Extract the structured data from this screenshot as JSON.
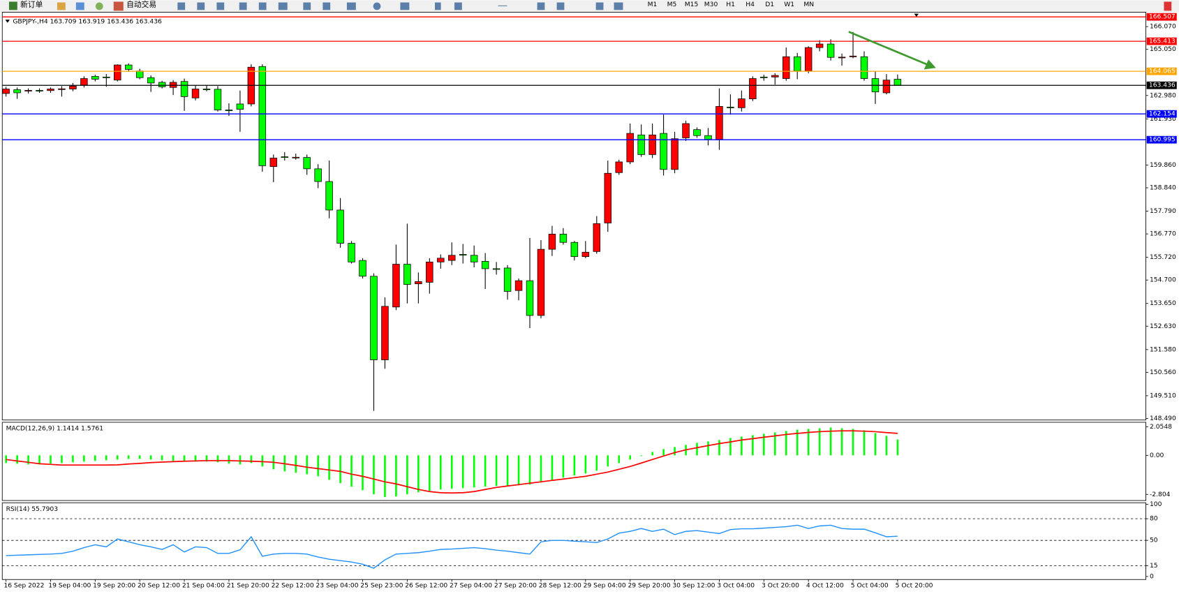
{
  "toolbar": {
    "new_order": "新订单",
    "auto_trading": "自动交易",
    "timeframes": [
      "M1",
      "M5",
      "M15",
      "M30",
      "H1",
      "H4",
      "D1",
      "W1",
      "MN"
    ]
  },
  "chart_data": [
    {
      "type": "candlestick",
      "title": "GBPJPY-,H4",
      "title_values": [
        163.709,
        163.919,
        163.436,
        163.436
      ],
      "up_color": "#ff0000",
      "down_color": "#00ff00",
      "categories": [
        "16 Sep 2022",
        null,
        null,
        null,
        "19 Sep 04:00",
        null,
        null,
        null,
        "19 Sep 20:00",
        null,
        null,
        null,
        "20 Sep 12:00",
        null,
        null,
        null,
        "21 Sep 04:00",
        null,
        null,
        null,
        "21 Sep 20:00",
        null,
        null,
        null,
        "22 Sep 12:00",
        null,
        null,
        null,
        "23 Sep 04:00",
        null,
        null,
        null,
        "25 Sep 23:00",
        null,
        null,
        null,
        "26 Sep 12:00",
        null,
        null,
        null,
        "27 Sep 04:00",
        null,
        null,
        null,
        "27 Sep 20:00",
        null,
        null,
        null,
        "28 Sep 12:00",
        null,
        null,
        null,
        "29 Sep 04:00",
        null,
        null,
        null,
        "29 Sep 20:00",
        null,
        null,
        null,
        "30 Sep 12:00",
        null,
        null,
        null,
        "3 Oct 04:00",
        null,
        null,
        null,
        "3 Oct 20:00",
        null,
        null,
        null,
        "4 Oct 12:00",
        null,
        null,
        null,
        "5 Oct 04:00",
        null,
        null,
        null,
        "5 Oct 20:00"
      ],
      "open": [
        163.07,
        163.24,
        163.2,
        163.21,
        163.2,
        163.27,
        163.27,
        163.44,
        163.84,
        163.81,
        163.67,
        164.35,
        164.08,
        163.78,
        163.57,
        163.34,
        163.61,
        162.87,
        163.27,
        163.26,
        162.33,
        162.6,
        162.6,
        164.28,
        159.79,
        160.23,
        160.2,
        160.2,
        159.69,
        159.12,
        157.84,
        156.35,
        155.58,
        154.87,
        151.12,
        153.49,
        155.41,
        154.53,
        154.6,
        155.51,
        155.58,
        155.85,
        155.81,
        155.54,
        155.21,
        155.24,
        154.23,
        154.67,
        153.11,
        156.08,
        156.76,
        156.39,
        155.75,
        155.98,
        157.26,
        159.52,
        160.0,
        161.21,
        160.33,
        161.28,
        159.66,
        161.08,
        161.45,
        161.18,
        161.01,
        162.46,
        162.43,
        162.83,
        163.81,
        163.81,
        163.74,
        164.72,
        164.08,
        165.13,
        165.29,
        164.69,
        164.72,
        164.72,
        163.74,
        163.1,
        163.709
      ],
      "high": [
        163.37,
        163.34,
        163.3,
        163.3,
        163.34,
        163.4,
        163.54,
        163.84,
        163.91,
        163.94,
        164.38,
        164.42,
        164.18,
        163.88,
        163.64,
        163.67,
        163.74,
        163.44,
        163.44,
        163.4,
        162.63,
        163.2,
        164.38,
        164.38,
        160.33,
        160.44,
        160.37,
        160.33,
        159.9,
        160.06,
        158.38,
        156.45,
        155.68,
        155.0,
        153.92,
        156.29,
        157.23,
        155.04,
        155.68,
        155.85,
        156.39,
        156.32,
        156.25,
        155.91,
        155.51,
        155.37,
        154.77,
        156.59,
        156.49,
        157.13,
        157.03,
        156.45,
        156.45,
        157.57,
        160.06,
        160.1,
        161.72,
        161.68,
        161.72,
        162.12,
        161.35,
        161.85,
        161.55,
        161.52,
        163.3,
        163.03,
        163.2,
        163.84,
        163.91,
        163.98,
        165.13,
        164.89,
        165.19,
        165.46,
        165.5,
        164.86,
        165.83,
        164.96,
        164.08,
        163.94,
        163.919
      ],
      "low": [
        162.93,
        162.83,
        163.07,
        163.1,
        163.1,
        162.93,
        163.17,
        163.34,
        163.61,
        163.37,
        163.61,
        164.05,
        163.71,
        163.14,
        163.3,
        163.0,
        162.29,
        162.76,
        163.17,
        162.26,
        162.06,
        161.35,
        162.49,
        159.56,
        159.09,
        160.06,
        160.1,
        159.42,
        158.82,
        157.47,
        156.15,
        155.44,
        154.77,
        148.83,
        150.72,
        153.35,
        153.65,
        153.65,
        154.09,
        155.21,
        155.37,
        155.44,
        155.27,
        154.3,
        154.94,
        153.82,
        153.79,
        152.54,
        152.98,
        155.78,
        156.29,
        155.58,
        155.68,
        155.88,
        156.86,
        159.42,
        159.9,
        160.23,
        160.17,
        159.39,
        159.49,
        160.94,
        161.08,
        160.74,
        160.54,
        162.12,
        162.26,
        162.73,
        163.64,
        163.47,
        163.64,
        163.71,
        163.98,
        164.96,
        164.55,
        164.32,
        164.65,
        163.64,
        162.6,
        163.03,
        163.436
      ],
      "close": [
        163.27,
        163.1,
        163.21,
        163.2,
        163.27,
        163.28,
        163.4,
        163.74,
        163.71,
        163.8,
        164.35,
        164.15,
        163.78,
        163.54,
        163.37,
        163.57,
        162.93,
        163.27,
        163.26,
        162.33,
        162.32,
        162.36,
        164.25,
        159.83,
        160.17,
        160.22,
        160.21,
        159.69,
        159.12,
        157.84,
        156.35,
        155.51,
        154.87,
        151.12,
        153.52,
        155.41,
        154.5,
        154.63,
        155.51,
        155.68,
        155.81,
        155.84,
        155.51,
        155.21,
        155.2,
        154.19,
        154.67,
        153.11,
        156.08,
        156.76,
        156.39,
        155.75,
        155.95,
        157.23,
        159.49,
        160.0,
        161.28,
        160.33,
        161.21,
        159.66,
        161.04,
        161.72,
        161.18,
        161.01,
        162.49,
        162.45,
        162.83,
        163.74,
        163.8,
        163.88,
        164.72,
        164.08,
        165.13,
        165.29,
        164.69,
        164.7,
        164.75,
        163.74,
        163.14,
        163.67,
        163.436
      ],
      "ylim": [
        148.42,
        166.58
      ],
      "yticks": [
        {
          "value": 166.07,
          "label": "166.070"
        },
        {
          "value": 165.05,
          "label": "165.050"
        },
        {
          "value": 162.98,
          "label": "162.980"
        },
        {
          "value": 161.93,
          "label": "161.930"
        },
        {
          "value": 159.86,
          "label": "159.860"
        },
        {
          "value": 158.84,
          "label": "158.840"
        },
        {
          "value": 157.79,
          "label": "157.790"
        },
        {
          "value": 156.77,
          "label": "156.770"
        },
        {
          "value": 155.72,
          "label": "155.720"
        },
        {
          "value": 154.7,
          "label": "154.700"
        },
        {
          "value": 153.65,
          "label": "153.650"
        },
        {
          "value": 152.63,
          "label": "152.630"
        },
        {
          "value": 151.58,
          "label": "151.580"
        },
        {
          "value": 150.56,
          "label": "150.560"
        },
        {
          "value": 149.51,
          "label": "149.510"
        },
        {
          "value": 148.49,
          "label": "148.490"
        }
      ],
      "levels": [
        {
          "value": 166.507,
          "color": "#ff0000"
        },
        {
          "value": 165.413,
          "color": "#ff0000"
        },
        {
          "value": 164.065,
          "color": "#ffa500"
        },
        {
          "value": 163.436,
          "color": "#000000"
        },
        {
          "value": 162.154,
          "color": "#0000ff"
        },
        {
          "value": 160.995,
          "color": "#0000ff"
        }
      ]
    },
    {
      "type": "macd",
      "title": "MACD(12,26,9)",
      "title_values": [
        1.1414,
        1.5761
      ],
      "series": [
        {
          "kind": "bar",
          "color": "#00ff00",
          "values": [
            -0.55,
            -0.6,
            -0.65,
            -0.65,
            -0.6,
            -0.55,
            -0.5,
            -0.45,
            -0.4,
            -0.35,
            -0.3,
            -0.25,
            -0.25,
            -0.3,
            -0.35,
            -0.4,
            -0.45,
            -0.45,
            -0.45,
            -0.5,
            -0.6,
            -0.65,
            -0.55,
            -0.8,
            -1.0,
            -1.15,
            -1.25,
            -1.35,
            -1.5,
            -1.75,
            -2.0,
            -2.25,
            -2.5,
            -2.8,
            -3.0,
            -2.95,
            -2.8,
            -2.65,
            -2.55,
            -2.45,
            -2.4,
            -2.35,
            -2.3,
            -2.25,
            -2.2,
            -2.2,
            -2.15,
            -2.1,
            -1.95,
            -1.75,
            -1.6,
            -1.45,
            -1.3,
            -1.1,
            -0.8,
            -0.55,
            -0.3,
            -0.05,
            0.25,
            0.45,
            0.6,
            0.75,
            0.9,
            1.0,
            1.1,
            1.25,
            1.35,
            1.45,
            1.55,
            1.65,
            1.75,
            1.85,
            1.9,
            1.95,
            2.0,
            1.95,
            1.9,
            1.8,
            1.6,
            1.4,
            1.1414
          ]
        },
        {
          "kind": "line",
          "color": "#ff0000",
          "values": [
            -0.3,
            -0.4,
            -0.5,
            -0.6,
            -0.65,
            -0.7,
            -0.7,
            -0.7,
            -0.7,
            -0.7,
            -0.68,
            -0.62,
            -0.58,
            -0.52,
            -0.48,
            -0.45,
            -0.42,
            -0.4,
            -0.38,
            -0.38,
            -0.38,
            -0.4,
            -0.42,
            -0.45,
            -0.5,
            -0.6,
            -0.72,
            -0.85,
            -0.95,
            -1.05,
            -1.15,
            -1.35,
            -1.5,
            -1.7,
            -1.9,
            -2.05,
            -2.25,
            -2.45,
            -2.6,
            -2.68,
            -2.7,
            -2.68,
            -2.6,
            -2.45,
            -2.3,
            -2.2,
            -2.1,
            -2.0,
            -1.9,
            -1.8,
            -1.7,
            -1.6,
            -1.5,
            -1.35,
            -1.2,
            -1.0,
            -0.8,
            -0.55,
            -0.3,
            -0.05,
            0.2,
            0.4,
            0.55,
            0.7,
            0.85,
            0.97,
            1.1,
            1.2,
            1.3,
            1.4,
            1.5,
            1.58,
            1.65,
            1.7,
            1.74,
            1.76,
            1.76,
            1.74,
            1.7,
            1.64,
            1.5761
          ]
        }
      ],
      "ylim": [
        -3.243,
        2.378
      ],
      "yticks": [
        2.0548,
        {
          "value": 0,
          "label": "0.00"
        },
        -2.804
      ]
    },
    {
      "type": "line",
      "title": "RSI(14)",
      "title_values": [
        55.7903
      ],
      "color": "#1e90ff",
      "values": [
        29,
        29.5,
        30,
        30.5,
        31,
        32,
        35,
        40,
        44,
        41,
        52,
        48,
        44,
        41,
        37.5,
        44,
        34,
        41,
        40,
        32,
        32,
        37,
        55,
        28,
        31,
        32,
        32,
        31,
        27,
        24,
        22,
        20,
        17,
        11.5,
        23,
        31,
        32,
        33,
        35,
        37.5,
        38,
        39,
        40,
        38.5,
        36.5,
        35,
        33,
        31,
        48,
        50,
        50,
        49,
        48,
        47,
        52,
        60,
        62.5,
        66.5,
        62.5,
        65.5,
        58,
        62.5,
        63.5,
        61.5,
        59.5,
        65,
        66,
        66,
        67,
        68,
        69,
        71,
        66.5,
        70,
        71,
        66.5,
        65.5,
        65.5,
        60.5,
        55,
        55.7903
      ],
      "ylim": [
        0,
        100
      ],
      "yticks": [
        100,
        80,
        50,
        15,
        0
      ],
      "levels": [
        80,
        50,
        15
      ]
    }
  ]
}
